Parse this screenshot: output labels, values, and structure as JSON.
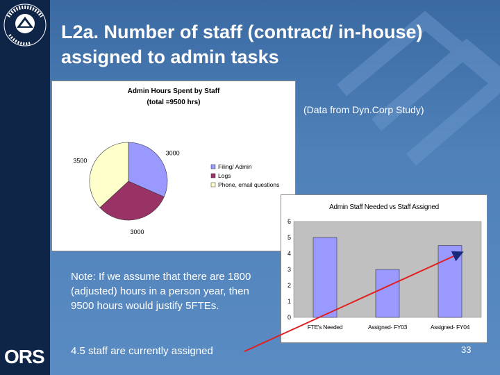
{
  "slide": {
    "title": "L2a. Number of staff (contract/ in-house) assigned to admin tasks",
    "source_note": "(Data from Dyn.Corp Study)",
    "note": "Note: If we assume that there are 1800 (adjusted) hours in a person year, then 9500 hours would justify 5FTEs.",
    "assigned_note": "4.5 staff are currently assigned",
    "page_number": "33",
    "logo_text": "ORS",
    "seal_text": "NATIONAL INSTITUTES OF HEALTH"
  },
  "colors": {
    "background": "#4f80b8",
    "sidebar": "#0f2547",
    "pie_filing": "#9999ff",
    "pie_logs": "#993366",
    "pie_phone": "#ffffcc",
    "bar_fill": "#9999ff",
    "plot_bg": "#c0c0c0",
    "arrow": "#e02020"
  },
  "chart_data": [
    {
      "type": "pie",
      "title": "Admin Hours Spent by Staff",
      "subtitle": "(total =9500 hrs)",
      "slices": [
        {
          "label": "Filing/ Admin",
          "value": 3000,
          "value_label": "3000"
        },
        {
          "label": "Logs",
          "value": 3000,
          "value_label": "3000"
        },
        {
          "label": "Phone, email questions",
          "value": 3500,
          "value_label": "3500"
        }
      ],
      "legend_position": "right"
    },
    {
      "type": "bar",
      "title": "Admin Staff Needed vs Staff Assigned",
      "categories": [
        "FTE's Needed",
        "Assigned- FY03",
        "Assigned- FY04"
      ],
      "values": [
        5,
        3,
        4.5
      ],
      "ylim": [
        0,
        6
      ],
      "yticks": [
        "0",
        "1",
        "2",
        "3",
        "4",
        "5",
        "6"
      ],
      "grid": false
    }
  ]
}
